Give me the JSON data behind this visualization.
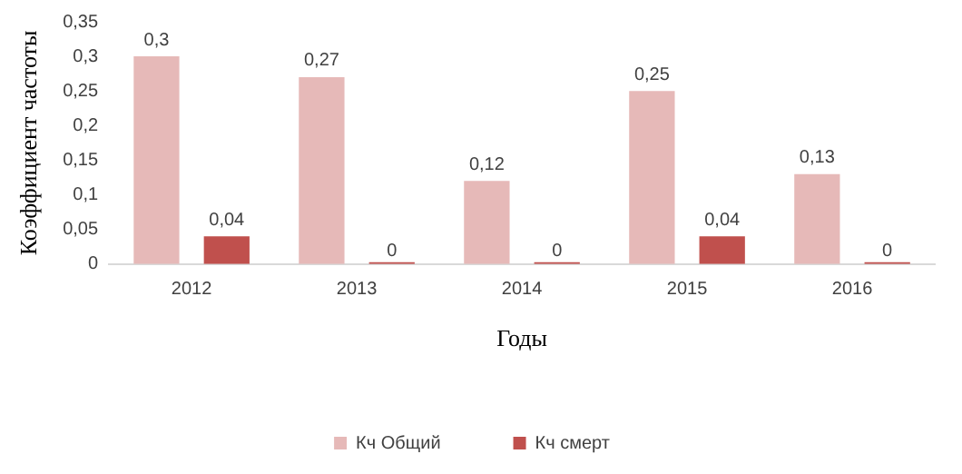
{
  "chart_data": {
    "type": "bar",
    "xlabel": "Годы",
    "ylabel": "Коэффициент частоты",
    "categories": [
      "2012",
      "2013",
      "2014",
      "2015",
      "2016"
    ],
    "series": [
      {
        "name": "Кч Общий",
        "color": "#e6b9b8",
        "values": [
          0.3,
          0.27,
          0.12,
          0.25,
          0.13
        ],
        "value_labels": [
          "0,3",
          "0,27",
          "0,12",
          "0,25",
          "0,13"
        ]
      },
      {
        "name": "Кч смерт",
        "color": "#c0504d",
        "values": [
          0.04,
          0,
          0,
          0.04,
          0
        ],
        "value_labels": [
          "0,04",
          "0",
          "0",
          "0,04",
          "0"
        ]
      }
    ],
    "ylim": [
      0,
      0.35
    ],
    "yticks": [
      {
        "value": 0,
        "label": "0"
      },
      {
        "value": 0.05,
        "label": "0,05"
      },
      {
        "value": 0.1,
        "label": "0,1"
      },
      {
        "value": 0.15,
        "label": "0,15"
      },
      {
        "value": 0.2,
        "label": "0,2"
      },
      {
        "value": 0.25,
        "label": "0,25"
      },
      {
        "value": 0.3,
        "label": "0,3"
      },
      {
        "value": 0.35,
        "label": "0,35"
      }
    ],
    "grid": false,
    "legend": "bottom"
  }
}
